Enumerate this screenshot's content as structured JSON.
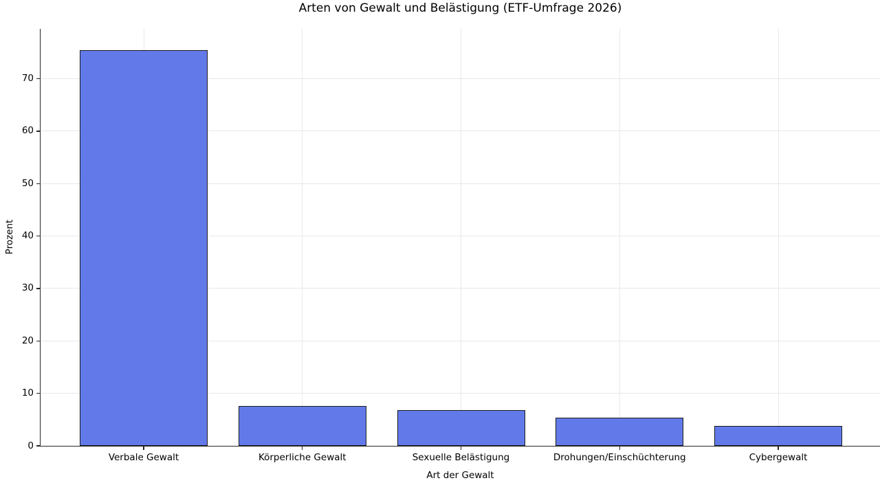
{
  "figure": {
    "background_color": "#ffffff"
  },
  "chart_data": {
    "type": "bar",
    "title": "Arten von Gewalt und Belästigung (ETF-Umfrage 2026)",
    "xlabel": "Art der Gewalt",
    "ylabel": "Prozent",
    "categories": [
      "Verbale Gewalt",
      "Körperliche Gewalt",
      "Sexuelle Belästigung",
      "Drohungen/Einschüchterung",
      "Cybergewalt"
    ],
    "values": [
      75.5,
      7.6,
      6.8,
      5.4,
      3.8
    ],
    "ylim": [
      0,
      79.5
    ],
    "yticks": [
      0,
      10,
      20,
      30,
      40,
      50,
      60,
      70
    ],
    "grid": true,
    "legend": false,
    "bar_color": "#627AE9",
    "bar_edge_color": "#1a1a1a",
    "grid_color": "#e8e8e8",
    "axis_color": "#262626",
    "text_color": "#000000"
  }
}
